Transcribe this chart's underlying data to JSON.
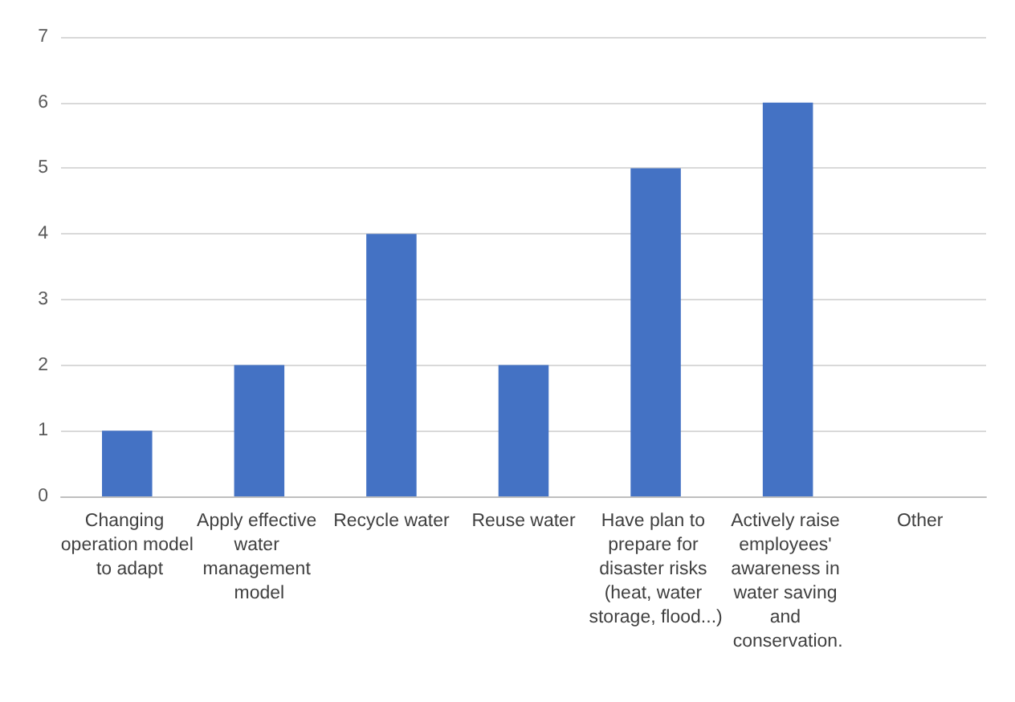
{
  "chart_data": {
    "type": "bar",
    "categories": [
      "Changing operation model to adapt",
      "Apply effective water management model",
      "Recycle water",
      "Reuse water",
      "Have plan to prepare for disaster risks (heat, water storage, flood...)",
      "Actively raise employees' awareness in water saving and conservation.",
      "Other"
    ],
    "values": [
      1,
      2,
      4,
      2,
      5,
      6,
      null
    ],
    "color": "#4472c4",
    "ylim": [
      0,
      7
    ],
    "yticks": [
      0,
      1,
      2,
      3,
      4,
      5,
      6,
      7
    ],
    "grid": "y"
  }
}
